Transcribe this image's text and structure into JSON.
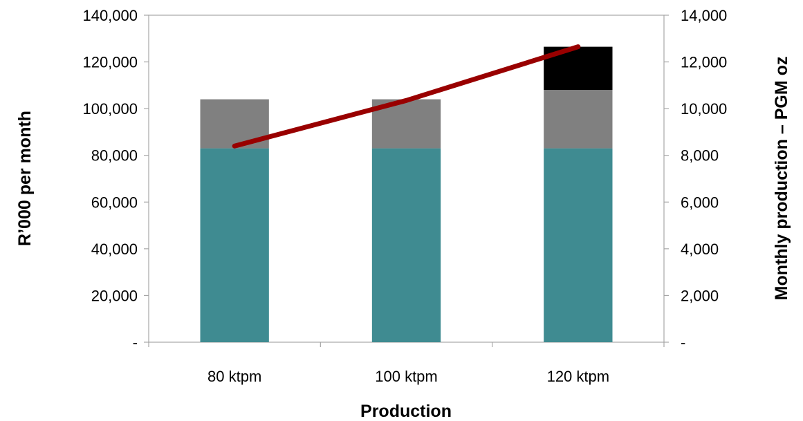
{
  "chart_data": {
    "type": "bar",
    "stacked": true,
    "categories": [
      "80 ktpm",
      "100 ktpm",
      "120 ktpm"
    ],
    "series": [
      {
        "axis": "left",
        "color": "#3f8b91",
        "values": [
          83000,
          83000,
          83000
        ]
      },
      {
        "axis": "left",
        "color": "#808080",
        "values": [
          21000,
          21000,
          25000
        ]
      },
      {
        "axis": "left",
        "color": "#000000",
        "values": [
          0,
          0,
          18500
        ]
      },
      {
        "axis": "right",
        "type": "line",
        "color": "#990000",
        "values": [
          8400,
          10350,
          12650
        ]
      }
    ],
    "xlabel": "Production",
    "ylabel": "R’000 per month",
    "y2label": "Monthly production – PGM oz",
    "ylim": [
      0,
      140000
    ],
    "y2lim": [
      0,
      14000
    ],
    "yticks": [
      "-",
      "20,000",
      "40,000",
      "60,000",
      "80,000",
      "100,000",
      "120,000",
      "140,000"
    ],
    "y2ticks": [
      "-",
      "2,000",
      "4,000",
      "6,000",
      "8,000",
      "10,000",
      "12,000",
      "14,000"
    ],
    "grid": false,
    "legend": "none"
  }
}
